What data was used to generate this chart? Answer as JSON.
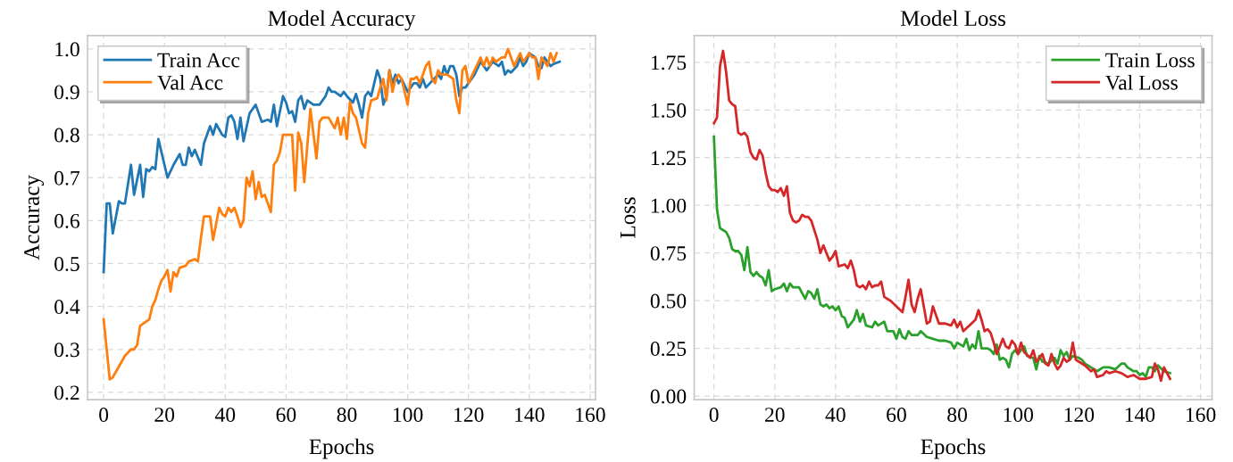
{
  "chart_data": [
    {
      "type": "line",
      "title": "Model Accuracy",
      "xlabel": "Epochs",
      "ylabel": "Accuracy",
      "xlim": [
        -5.3,
        161.8
      ],
      "ylim": [
        0.183,
        1.031
      ],
      "xticks": [
        0,
        20,
        40,
        60,
        80,
        100,
        120,
        140,
        160
      ],
      "yticks": [
        {
          "value": 0.2,
          "label": "0.2"
        },
        {
          "value": 0.3,
          "label": "0.3"
        },
        {
          "value": 0.4,
          "label": "0.4"
        },
        {
          "value": 0.5,
          "label": "0.5"
        },
        {
          "value": 0.6,
          "label": "0.6"
        },
        {
          "value": 0.7,
          "label": "0.7"
        },
        {
          "value": 0.8,
          "label": "0.8"
        },
        {
          "value": 0.9,
          "label": "0.9"
        },
        {
          "value": 1.0,
          "label": "1.0"
        }
      ],
      "grid": true,
      "legend": "top left",
      "marker": "none",
      "line_style": "solid",
      "series": [
        {
          "name": "Train Acc",
          "color": "#1f77b4",
          "x": [
            0,
            1,
            2,
            3,
            5,
            6,
            7,
            9,
            10,
            12,
            13,
            14,
            15,
            16,
            17,
            18,
            19,
            21,
            23,
            25,
            26,
            27,
            28,
            29,
            30,
            32,
            33,
            35,
            36,
            37,
            39,
            40,
            41,
            42,
            43,
            44,
            45,
            46,
            48,
            50,
            52,
            54,
            55,
            56,
            57,
            59,
            60,
            61,
            62,
            63,
            64,
            65,
            66,
            67,
            69,
            71,
            73,
            74,
            75,
            76,
            78,
            79,
            80,
            82,
            83,
            84,
            85,
            86,
            87,
            88,
            89,
            90,
            91,
            92,
            93,
            94,
            95,
            96,
            97,
            98,
            100,
            101,
            102,
            103,
            104,
            105,
            106,
            108,
            110,
            111,
            112,
            113,
            114,
            115,
            116,
            117,
            118,
            119,
            120,
            122,
            124,
            126,
            128,
            130,
            131,
            132,
            133,
            134,
            136,
            137,
            138,
            139,
            140,
            142,
            143,
            144,
            145,
            146,
            147,
            148,
            150
          ],
          "values": [
            0.48,
            0.64,
            0.64,
            0.57,
            0.645,
            0.64,
            0.64,
            0.73,
            0.66,
            0.73,
            0.655,
            0.72,
            0.715,
            0.725,
            0.72,
            0.79,
            0.76,
            0.7,
            0.73,
            0.755,
            0.73,
            0.73,
            0.77,
            0.75,
            0.765,
            0.73,
            0.78,
            0.82,
            0.8,
            0.825,
            0.8,
            0.795,
            0.84,
            0.845,
            0.83,
            0.79,
            0.84,
            0.785,
            0.85,
            0.87,
            0.83,
            0.835,
            0.83,
            0.87,
            0.82,
            0.89,
            0.875,
            0.85,
            0.855,
            0.83,
            0.88,
            0.89,
            0.86,
            0.88,
            0.87,
            0.87,
            0.89,
            0.91,
            0.9,
            0.9,
            0.89,
            0.9,
            0.89,
            0.875,
            0.895,
            0.87,
            0.84,
            0.89,
            0.9,
            0.89,
            0.92,
            0.95,
            0.93,
            0.87,
            0.89,
            0.95,
            0.92,
            0.94,
            0.92,
            0.93,
            0.9,
            0.91,
            0.92,
            0.92,
            0.91,
            0.93,
            0.91,
            0.925,
            0.94,
            0.93,
            0.96,
            0.94,
            0.96,
            0.96,
            0.94,
            0.89,
            0.91,
            0.91,
            0.92,
            0.94,
            0.97,
            0.95,
            0.97,
            0.96,
            0.97,
            0.94,
            0.95,
            0.945,
            0.96,
            0.98,
            0.96,
            0.97,
            0.99,
            0.98,
            0.96,
            0.955,
            0.98,
            0.97,
            0.96,
            0.965,
            0.97
          ]
        },
        {
          "name": "Val Acc",
          "color": "#ff7f0e",
          "x": [
            0,
            2,
            3,
            5,
            7,
            9,
            10,
            11,
            12,
            13,
            15,
            16,
            17,
            18,
            19,
            20,
            21,
            22,
            23,
            24,
            25,
            27,
            28,
            30,
            31,
            32,
            33,
            35,
            36,
            38,
            39,
            40,
            41,
            42,
            43,
            44,
            45,
            46,
            47,
            48,
            49,
            50,
            51,
            52,
            53,
            55,
            56,
            57,
            58,
            59,
            62,
            63,
            64,
            65,
            66,
            68,
            70,
            71,
            72,
            74,
            76,
            77,
            78,
            79,
            80,
            81,
            82,
            83,
            85,
            86,
            87,
            88,
            90,
            91,
            92,
            93,
            94,
            95,
            96,
            97,
            98,
            100,
            101,
            102,
            103,
            104,
            105,
            106,
            107,
            108,
            109,
            110,
            111,
            113,
            115,
            116,
            117,
            118,
            119,
            120,
            122,
            124,
            125,
            126,
            127,
            128,
            129,
            131,
            132,
            133,
            134,
            135,
            137,
            138,
            139,
            140,
            141,
            142,
            143,
            144,
            146,
            147,
            148,
            149
          ],
          "values": [
            0.37,
            0.23,
            0.235,
            0.26,
            0.285,
            0.3,
            0.3,
            0.31,
            0.355,
            0.36,
            0.37,
            0.4,
            0.415,
            0.44,
            0.46,
            0.47,
            0.485,
            0.435,
            0.48,
            0.47,
            0.49,
            0.495,
            0.505,
            0.51,
            0.505,
            0.56,
            0.61,
            0.61,
            0.555,
            0.63,
            0.615,
            0.61,
            0.63,
            0.62,
            0.63,
            0.61,
            0.585,
            0.6,
            0.7,
            0.68,
            0.715,
            0.65,
            0.69,
            0.655,
            0.66,
            0.62,
            0.73,
            0.74,
            0.76,
            0.8,
            0.8,
            0.67,
            0.805,
            0.78,
            0.69,
            0.86,
            0.745,
            0.83,
            0.84,
            0.84,
            0.815,
            0.84,
            0.8,
            0.84,
            0.79,
            0.876,
            0.85,
            0.84,
            0.78,
            0.77,
            0.85,
            0.88,
            0.885,
            0.91,
            0.93,
            0.88,
            0.95,
            0.9,
            0.93,
            0.94,
            0.93,
            0.87,
            0.93,
            0.93,
            0.935,
            0.92,
            0.94,
            0.96,
            0.97,
            0.93,
            0.92,
            0.95,
            0.94,
            0.94,
            0.93,
            0.88,
            0.85,
            0.95,
            0.96,
            0.92,
            0.95,
            0.98,
            0.96,
            0.98,
            0.96,
            0.98,
            0.97,
            0.98,
            0.98,
            1.0,
            0.98,
            0.96,
            0.99,
            0.97,
            0.98,
            0.99,
            0.98,
            0.98,
            0.93,
            0.98,
            0.96,
            0.99,
            0.97,
            0.99
          ]
        }
      ]
    },
    {
      "type": "line",
      "title": "Model Loss",
      "xlabel": "Epochs",
      "ylabel": "Loss",
      "xlim": [
        -6.5,
        163.8
      ],
      "ylim": [
        -0.019,
        1.89
      ],
      "xticks": [
        0,
        20,
        40,
        60,
        80,
        100,
        120,
        140,
        160
      ],
      "yticks": [
        {
          "value": 0,
          "label": "0.00"
        },
        {
          "value": 0.25,
          "label": "0.25"
        },
        {
          "value": 0.5,
          "label": "0.50"
        },
        {
          "value": 0.75,
          "label": "0.75"
        },
        {
          "value": 1.0,
          "label": "1.00"
        },
        {
          "value": 1.25,
          "label": "1.25"
        },
        {
          "value": 1.5,
          "label": "1.50"
        },
        {
          "value": 1.75,
          "label": "1.75"
        }
      ],
      "grid": true,
      "legend": "top right",
      "marker": "none",
      "line_style": "solid",
      "series": [
        {
          "name": "Train Loss",
          "color": "#2ca02c",
          "x": [
            0,
            1,
            2,
            3,
            4,
            5,
            6,
            7,
            8,
            9,
            10,
            11,
            12,
            13,
            14,
            15,
            16,
            17,
            18,
            19,
            20,
            22,
            23,
            24,
            25,
            26,
            28,
            29,
            30,
            31,
            32,
            33,
            34,
            35,
            36,
            37,
            38,
            39,
            40,
            41,
            42,
            43,
            44,
            46,
            47,
            48,
            49,
            50,
            52,
            53,
            54,
            56,
            57,
            59,
            60,
            61,
            62,
            63,
            64,
            65,
            67,
            68,
            70,
            72,
            74,
            76,
            78,
            79,
            80,
            82,
            83,
            84,
            85,
            86,
            87,
            88,
            90,
            91,
            92,
            93,
            94,
            95,
            96,
            97,
            98,
            99,
            100,
            102,
            103,
            105,
            106,
            107,
            108,
            110,
            112,
            113,
            114,
            115,
            116,
            117,
            118,
            120,
            121,
            122,
            124,
            126,
            128,
            130,
            132,
            134,
            135,
            136,
            138,
            139,
            140,
            141,
            142,
            143,
            144,
            145,
            146,
            148,
            150
          ],
          "values": [
            1.36,
            0.98,
            0.88,
            0.87,
            0.86,
            0.83,
            0.77,
            0.76,
            0.76,
            0.74,
            0.66,
            0.78,
            0.65,
            0.63,
            0.65,
            0.63,
            0.62,
            0.58,
            0.66,
            0.55,
            0.56,
            0.57,
            0.59,
            0.55,
            0.59,
            0.57,
            0.57,
            0.54,
            0.51,
            0.55,
            0.54,
            0.51,
            0.56,
            0.48,
            0.47,
            0.48,
            0.46,
            0.47,
            0.45,
            0.47,
            0.42,
            0.41,
            0.36,
            0.4,
            0.45,
            0.39,
            0.43,
            0.37,
            0.36,
            0.39,
            0.37,
            0.39,
            0.34,
            0.34,
            0.3,
            0.35,
            0.31,
            0.3,
            0.34,
            0.32,
            0.32,
            0.34,
            0.31,
            0.3,
            0.29,
            0.29,
            0.28,
            0.25,
            0.28,
            0.26,
            0.3,
            0.24,
            0.27,
            0.25,
            0.34,
            0.25,
            0.25,
            0.24,
            0.22,
            0.27,
            0.19,
            0.2,
            0.19,
            0.15,
            0.22,
            0.24,
            0.22,
            0.26,
            0.21,
            0.2,
            0.14,
            0.21,
            0.18,
            0.17,
            0.2,
            0.17,
            0.24,
            0.21,
            0.23,
            0.19,
            0.21,
            0.2,
            0.19,
            0.17,
            0.15,
            0.13,
            0.15,
            0.15,
            0.14,
            0.17,
            0.17,
            0.15,
            0.13,
            0.13,
            0.11,
            0.12,
            0.1,
            0.15,
            0.15,
            0.13,
            0.16,
            0.13,
            0.12
          ]
        },
        {
          "name": "Val Loss",
          "color": "#d62728",
          "x": [
            0,
            1,
            2,
            3,
            4,
            5,
            6,
            7,
            8,
            9,
            10,
            11,
            12,
            13,
            14,
            15,
            16,
            17,
            18,
            19,
            20,
            21,
            22,
            23,
            24,
            25,
            26,
            27,
            28,
            29,
            30,
            31,
            32,
            34,
            35,
            36,
            37,
            38,
            39,
            40,
            41,
            43,
            44,
            45,
            46,
            47,
            48,
            49,
            50,
            51,
            52,
            53,
            54,
            55,
            56,
            58,
            60,
            62,
            63,
            64,
            65,
            66,
            67,
            68,
            69,
            70,
            71,
            72,
            74,
            76,
            78,
            79,
            80,
            81,
            82,
            84,
            86,
            87,
            88,
            89,
            90,
            91,
            92,
            93,
            94,
            95,
            96,
            97,
            98,
            99,
            100,
            101,
            102,
            104,
            105,
            106,
            108,
            109,
            110,
            111,
            112,
            113,
            114,
            115,
            116,
            117,
            118,
            119,
            120,
            122,
            124,
            125,
            126,
            128,
            129,
            130,
            132,
            134,
            136,
            138,
            140,
            142,
            144,
            145,
            146,
            147,
            148,
            149,
            150
          ],
          "values": [
            1.43,
            1.46,
            1.73,
            1.81,
            1.7,
            1.55,
            1.53,
            1.52,
            1.38,
            1.37,
            1.38,
            1.36,
            1.28,
            1.25,
            1.24,
            1.29,
            1.26,
            1.17,
            1.1,
            1.08,
            1.08,
            1.07,
            1.09,
            1.05,
            1.1,
            0.96,
            0.92,
            0.91,
            0.92,
            0.95,
            0.94,
            0.94,
            0.92,
            0.82,
            0.75,
            0.79,
            0.75,
            0.71,
            0.73,
            0.76,
            0.68,
            0.69,
            0.67,
            0.71,
            0.66,
            0.58,
            0.57,
            0.58,
            0.56,
            0.6,
            0.57,
            0.58,
            0.58,
            0.6,
            0.52,
            0.5,
            0.47,
            0.44,
            0.52,
            0.61,
            0.48,
            0.44,
            0.51,
            0.56,
            0.47,
            0.38,
            0.39,
            0.47,
            0.38,
            0.38,
            0.37,
            0.4,
            0.36,
            0.39,
            0.34,
            0.37,
            0.4,
            0.45,
            0.4,
            0.34,
            0.35,
            0.33,
            0.28,
            0.22,
            0.26,
            0.3,
            0.26,
            0.25,
            0.29,
            0.27,
            0.22,
            0.28,
            0.23,
            0.2,
            0.24,
            0.18,
            0.22,
            0.17,
            0.16,
            0.22,
            0.17,
            0.14,
            0.16,
            0.2,
            0.18,
            0.19,
            0.28,
            0.19,
            0.18,
            0.16,
            0.13,
            0.14,
            0.1,
            0.11,
            0.13,
            0.12,
            0.13,
            0.12,
            0.1,
            0.11,
            0.09,
            0.09,
            0.1,
            0.17,
            0.14,
            0.08,
            0.15,
            0.12,
            0.09
          ]
        }
      ]
    }
  ]
}
